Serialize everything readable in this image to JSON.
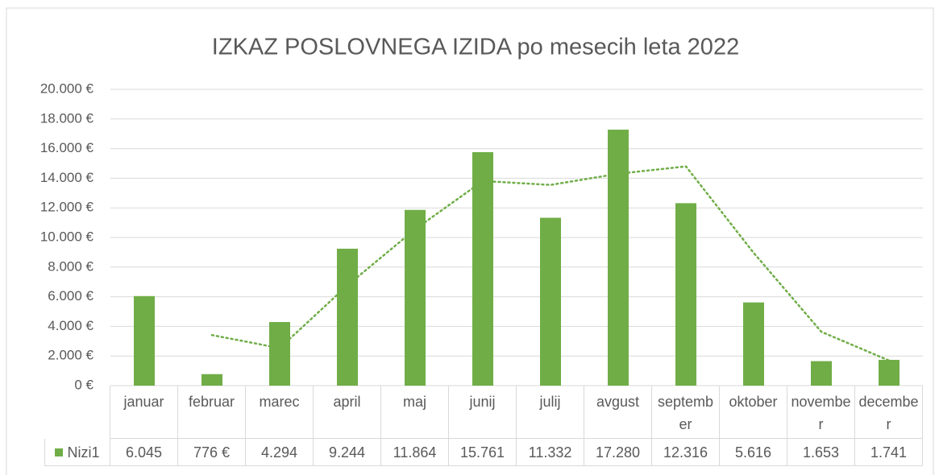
{
  "chart_data": {
    "type": "bar",
    "title": "IZKAZ POSLOVNEGA  IZIDA po mesecih leta 2022",
    "categories": [
      "januar",
      "februar",
      "marec",
      "april",
      "maj",
      "junij",
      "julij",
      "avgust",
      "september",
      "oktober",
      "november",
      "december"
    ],
    "series": [
      {
        "name": "Nizi1",
        "color": "#70ad47",
        "values": [
          6045,
          776,
          4294,
          9244,
          11864,
          15761,
          11332,
          17280,
          12316,
          5616,
          1653,
          1741
        ],
        "value_labels": [
          "6.045",
          "776 €",
          "4.294",
          "9.244",
          "11.864",
          "15.761",
          "11.332",
          "17.280",
          "12.316",
          "5.616",
          "1.653",
          "1.741"
        ]
      }
    ],
    "trendline": {
      "period": 2,
      "color": "#70ad47"
    },
    "ylim": [
      0,
      20000
    ],
    "yticks": [
      {
        "value": 0,
        "label": "0 €"
      },
      {
        "value": 2000,
        "label": "2.000 €"
      },
      {
        "value": 4000,
        "label": "4.000 €"
      },
      {
        "value": 6000,
        "label": "6.000 €"
      },
      {
        "value": 8000,
        "label": "8.000 €"
      },
      {
        "value": 10000,
        "label": "10.000 €"
      },
      {
        "value": 12000,
        "label": "12.000 €"
      },
      {
        "value": 14000,
        "label": "14.000 €"
      },
      {
        "value": 16000,
        "label": "16.000 €"
      },
      {
        "value": 18000,
        "label": "18.000 €"
      },
      {
        "value": 20000,
        "label": "20.000 €"
      }
    ],
    "grid": true
  }
}
